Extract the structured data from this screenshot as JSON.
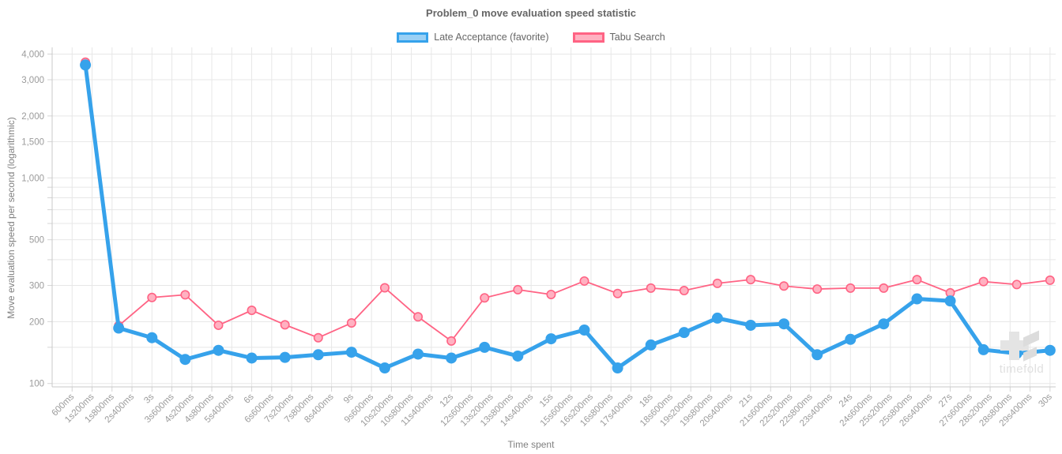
{
  "title": "Problem_0 move evaluation speed statistic",
  "legend": {
    "items": [
      {
        "label": "Late Acceptance (favorite)",
        "stroke": "#36a2eb",
        "fill": "#9ad0f5"
      },
      {
        "label": "Tabu Search",
        "stroke": "#ff6384",
        "fill": "#ffb1c1"
      }
    ]
  },
  "axes": {
    "y_title": "Move evaluation speed per second (logarithmic)",
    "x_title": "Time spent"
  },
  "watermark": "timefold",
  "chart_data": {
    "type": "line",
    "title": "Problem_0 move evaluation speed statistic",
    "xlabel": "Time spent",
    "ylabel": "Move evaluation speed per second (logarithmic)",
    "x_unit": "seconds",
    "x": [
      1,
      2,
      3,
      4,
      5,
      6,
      7,
      8,
      9,
      10,
      11,
      12,
      13,
      14,
      15,
      16,
      17,
      18,
      19,
      20,
      21,
      22,
      23,
      24,
      25,
      26,
      27,
      28,
      29,
      30
    ],
    "series": [
      {
        "name": "Late Acceptance (favorite)",
        "color": "#36a2eb",
        "values": [
          3540,
          186,
          167,
          131,
          145,
          133,
          134,
          138,
          142,
          119,
          139,
          133,
          150,
          136,
          165,
          182,
          119,
          154,
          177,
          208,
          192,
          195,
          138,
          164,
          195,
          258,
          252,
          146,
          140,
          145
        ]
      },
      {
        "name": "Tabu Search",
        "color": "#ff6384",
        "values": [
          3650,
          191,
          262,
          270,
          192,
          227,
          193,
          167,
          197,
          292,
          211,
          161,
          261,
          286,
          271,
          315,
          274,
          291,
          283,
          307,
          320,
          298,
          288,
          291,
          291,
          320,
          276,
          313,
          303,
          318
        ]
      }
    ],
    "x_tick_labels": [
      "600ms",
      "1s200ms",
      "1s800ms",
      "2s400ms",
      "3s",
      "3s600ms",
      "4s200ms",
      "4s800ms",
      "5s400ms",
      "6s",
      "6s600ms",
      "7s200ms",
      "7s800ms",
      "8s400ms",
      "9s",
      "9s600ms",
      "10s200ms",
      "10s800ms",
      "11s400ms",
      "12s",
      "12s600ms",
      "13s200ms",
      "13s800ms",
      "14s400ms",
      "15s",
      "15s600ms",
      "16s200ms",
      "16s800ms",
      "17s400ms",
      "18s",
      "18s600ms",
      "19s200ms",
      "19s800ms",
      "20s400ms",
      "21s",
      "21s600ms",
      "22s200ms",
      "22s800ms",
      "23s400ms",
      "24s",
      "24s600ms",
      "25s200ms",
      "25s800ms",
      "26s400ms",
      "27s",
      "27s600ms",
      "28s200ms",
      "28s800ms",
      "29s400ms",
      "30s"
    ],
    "x_tick_seconds_first": 0.6,
    "x_tick_seconds_step": 0.6,
    "y_scale": "log",
    "y_major_ticks": [
      100,
      200,
      300,
      500,
      1000,
      1500,
      2000,
      3000,
      4000
    ],
    "y_major_tick_labels": [
      "100",
      "200",
      "300",
      "500",
      "1,000",
      "1,500",
      "2,000",
      "3,000",
      "4,000"
    ],
    "y_minor_ticks": [
      150,
      400,
      600,
      700,
      800,
      900
    ],
    "xlim_seconds": [
      0,
      30.17
    ],
    "ylim": [
      96.3,
      4310
    ],
    "grid": true,
    "legend_position": "top"
  },
  "style": {
    "grid_color": "#e7e7e7",
    "axis_border_color": "#c9c9c9",
    "tick_color": "#d4d4d4",
    "tick_label_color": "#9b9b9b"
  }
}
